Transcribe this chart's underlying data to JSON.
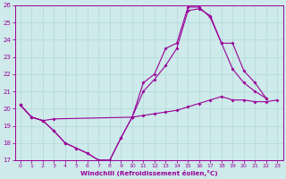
{
  "xlabel": "Windchill (Refroidissement éolien,°C)",
  "xlim": [
    -0.5,
    23.5
  ],
  "ylim": [
    17,
    26
  ],
  "yticks": [
    17,
    18,
    19,
    20,
    21,
    22,
    23,
    24,
    25,
    26
  ],
  "xticks": [
    0,
    1,
    2,
    3,
    4,
    5,
    6,
    7,
    8,
    9,
    10,
    11,
    12,
    13,
    14,
    15,
    16,
    17,
    18,
    19,
    20,
    21,
    22,
    23
  ],
  "background_color": "#ceeaea",
  "line_color": "#990099",
  "grid_color": "#b0d8d8",
  "line1_x": [
    0,
    1,
    2,
    3,
    10,
    11,
    12,
    13,
    14,
    15,
    16,
    17,
    18,
    19,
    20,
    21,
    22,
    23
  ],
  "line1_y": [
    20.2,
    19.5,
    19.3,
    19.4,
    19.5,
    19.6,
    19.7,
    19.8,
    19.9,
    20.1,
    20.3,
    20.5,
    20.7,
    20.5,
    20.5,
    20.4,
    20.4,
    20.5
  ],
  "line2_x": [
    0,
    1,
    2,
    3,
    4,
    5,
    6,
    7,
    8,
    9,
    10,
    11,
    12,
    13,
    14,
    15,
    16,
    17,
    18,
    19,
    20,
    21,
    22
  ],
  "line2_y": [
    20.2,
    19.5,
    19.3,
    18.7,
    18.0,
    17.7,
    17.4,
    17.0,
    17.0,
    18.3,
    19.5,
    21.0,
    21.7,
    22.5,
    23.5,
    25.7,
    25.8,
    25.4,
    23.8,
    22.3,
    21.5,
    21.0,
    20.6
  ],
  "line3_x": [
    0,
    1,
    2,
    3,
    4,
    5,
    6,
    7,
    8,
    9,
    10,
    11,
    12,
    13,
    14,
    15,
    16,
    17,
    18,
    19,
    20,
    21,
    22
  ],
  "line3_y": [
    20.2,
    19.5,
    19.3,
    18.7,
    18.0,
    17.7,
    17.4,
    17.0,
    17.0,
    18.3,
    19.5,
    21.5,
    22.0,
    23.5,
    23.8,
    25.9,
    25.9,
    25.3,
    23.8,
    23.8,
    22.2,
    21.5,
    20.6
  ]
}
